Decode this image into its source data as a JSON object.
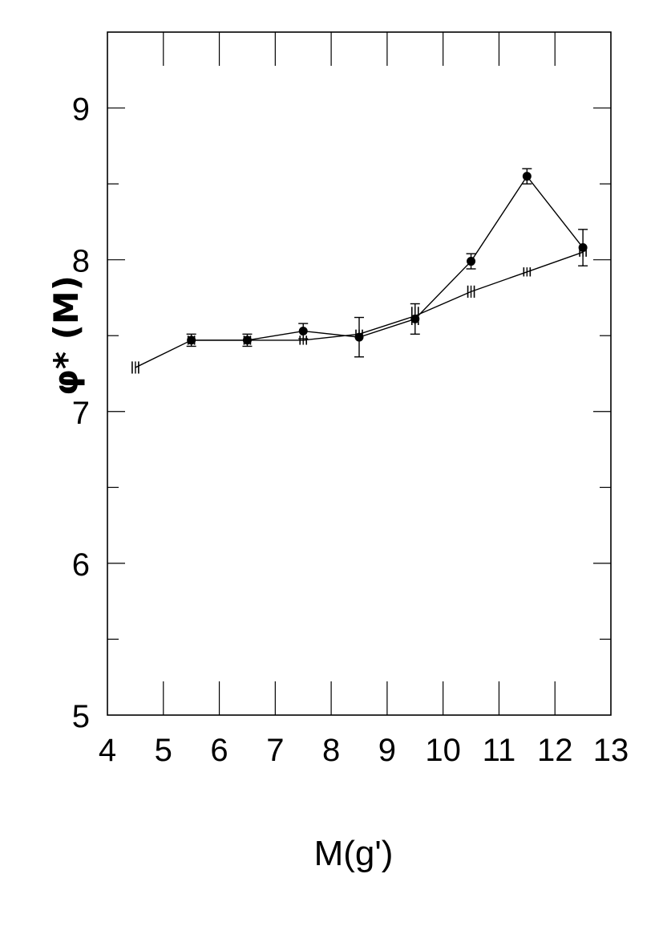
{
  "chart_data": {
    "type": "line",
    "xlabel": "M(g')",
    "ylabel": "φ* (M)",
    "xlim": [
      4,
      13
    ],
    "ylim": [
      5,
      9.5
    ],
    "x_ticks": [
      "4",
      "5",
      "6",
      "7",
      "8",
      "9",
      "10",
      "11",
      "12",
      "13"
    ],
    "y_ticks": [
      "5",
      "6",
      "7",
      "8",
      "9"
    ],
    "grid": false,
    "series": [
      {
        "marker": "dash-errorbar",
        "x": [
          4.5,
          5.5,
          6.5,
          7.5,
          8.5,
          9.5,
          10.5,
          11.5,
          12.5
        ],
        "y": [
          7.29,
          7.47,
          7.47,
          7.47,
          7.51,
          7.63,
          7.79,
          7.92,
          8.05
        ],
        "err": [
          0.04,
          0.03,
          0.03,
          0.03,
          0.03,
          0.06,
          0.04,
          0.03,
          0.03
        ]
      },
      {
        "marker": "filled-circle",
        "x": [
          5.5,
          6.5,
          7.5,
          8.5,
          9.5,
          10.5,
          11.5,
          12.5
        ],
        "y": [
          7.47,
          7.47,
          7.53,
          7.49,
          7.61,
          7.99,
          8.55,
          8.08
        ],
        "err": [
          0.04,
          0.04,
          0.05,
          0.13,
          0.1,
          0.05,
          0.05,
          0.12
        ]
      }
    ]
  }
}
